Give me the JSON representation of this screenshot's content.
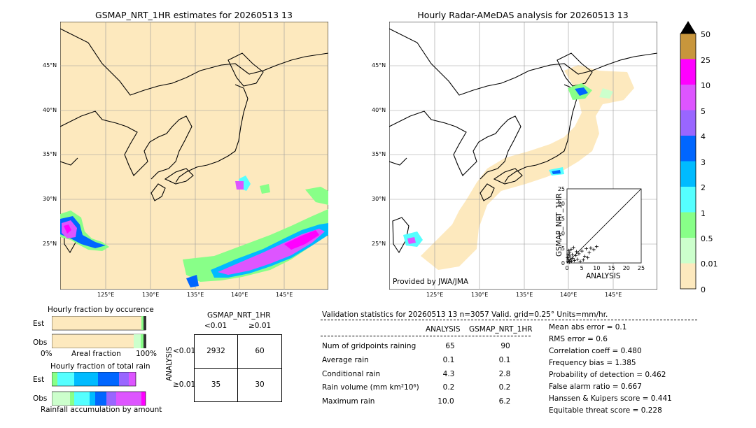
{
  "left_map": {
    "title": "GSMAP_NRT_1HR estimates for 20260513 13",
    "lat_labels": [
      "45°N",
      "40°N",
      "35°N",
      "30°N",
      "25°N"
    ],
    "lon_labels": [
      "125°E",
      "130°E",
      "135°E",
      "140°E",
      "145°E"
    ]
  },
  "right_map": {
    "title": "Hourly Radar-AMeDAS analysis for 20260513 13",
    "lat_labels": [
      "45°N",
      "40°N",
      "35°N",
      "30°N",
      "25°N"
    ],
    "lon_labels": [
      "125°E",
      "130°E",
      "135°E",
      "140°E",
      "145°E"
    ],
    "credit": "Provided by JWA/JMA"
  },
  "colorbar": {
    "labels": [
      "50",
      "25",
      "10",
      "5",
      "4",
      "3",
      "2",
      "1",
      "0.5",
      "0.01",
      "0"
    ],
    "colors": [
      "#c8963c",
      "#ff00ff",
      "#dd55ff",
      "#9966ff",
      "#0066ff",
      "#00bbff",
      "#55ffff",
      "#88ff88",
      "#ccffcc",
      "#fde9be"
    ]
  },
  "fraction_occurrence": {
    "title": "Hourly fraction by occurence",
    "row_labels": [
      "Est",
      "Obs"
    ],
    "xaxis_left": "0%",
    "xaxis_mid": "Areal fraction",
    "xaxis_right": "100%"
  },
  "fraction_total": {
    "title": "Hourly fraction of total rain",
    "row_labels": [
      "Est",
      "Obs"
    ],
    "footer": "Rainfall accumulation by amount"
  },
  "contingency": {
    "header": "GSMAP_NRT_1HR",
    "col_labels": [
      "<0.01",
      "≥0.01"
    ],
    "row_axis": "ANALYSIS",
    "row_labels": [
      "<0.01",
      "≥0.01"
    ],
    "cells": [
      "2932",
      "60",
      "35",
      "30"
    ]
  },
  "validation": {
    "header": "Validation statistics for 20260513 13  n=3057 Valid. grid=0.25° Units=mm/hr.",
    "col_analysis": "ANALYSIS",
    "col_gsmap": "GSMAP_NRT_1HR",
    "rows": [
      {
        "label": "Num of gridpoints raining",
        "analysis": "65",
        "gsmap": "90"
      },
      {
        "label": "Average rain",
        "analysis": "0.1",
        "gsmap": "0.1"
      },
      {
        "label": "Conditional rain",
        "analysis": "4.3",
        "gsmap": "2.8"
      },
      {
        "label": "Rain volume (mm km²10⁶)",
        "analysis": "0.2",
        "gsmap": "0.2"
      },
      {
        "label": "Maximum rain",
        "analysis": "10.0",
        "gsmap": "6.2"
      }
    ],
    "scores": [
      "Mean abs error =    0.1",
      "RMS error =    0.6",
      "Correlation coeff =  0.480",
      "Frequency bias =  1.385",
      "Probability of detection =  0.462",
      "False alarm ratio =  0.667",
      "Hanssen & Kuipers score =  0.441",
      "Equitable threat score =  0.228"
    ]
  },
  "chart_data": {
    "type": "scatter",
    "title": "",
    "xlabel": "ANALYSIS",
    "ylabel": "GSMAP_NRT_1HR",
    "xlim": [
      0,
      25
    ],
    "ylim": [
      0,
      25
    ],
    "xticks": [
      "0",
      "5",
      "10",
      "15",
      "20",
      "25"
    ],
    "yticks": [
      "0",
      "5",
      "10",
      "15",
      "20",
      "25"
    ],
    "points": [
      [
        0.3,
        0.5
      ],
      [
        0.5,
        1.2
      ],
      [
        0.8,
        0.3
      ],
      [
        1.0,
        2.0
      ],
      [
        0.4,
        3.0
      ],
      [
        0.6,
        4.2
      ],
      [
        1.2,
        1.0
      ],
      [
        1.5,
        0.6
      ],
      [
        2.0,
        1.5
      ],
      [
        2.5,
        0.8
      ],
      [
        3.0,
        2.5
      ],
      [
        0.2,
        1.8
      ],
      [
        0.9,
        3.6
      ],
      [
        1.8,
        2.8
      ],
      [
        3.5,
        1.2
      ],
      [
        4.0,
        3.1
      ],
      [
        5.0,
        4.0
      ],
      [
        6.0,
        2.2
      ],
      [
        6.5,
        4.8
      ],
      [
        7.5,
        3.5
      ],
      [
        8.0,
        5.0
      ],
      [
        9.0,
        4.5
      ],
      [
        10.0,
        5.5
      ],
      [
        5.5,
        1.0
      ],
      [
        4.5,
        0.5
      ],
      [
        2.2,
        5.2
      ],
      [
        1.4,
        4.6
      ],
      [
        0.7,
        2.6
      ],
      [
        3.2,
        3.8
      ],
      [
        7.0,
        1.8
      ]
    ]
  }
}
